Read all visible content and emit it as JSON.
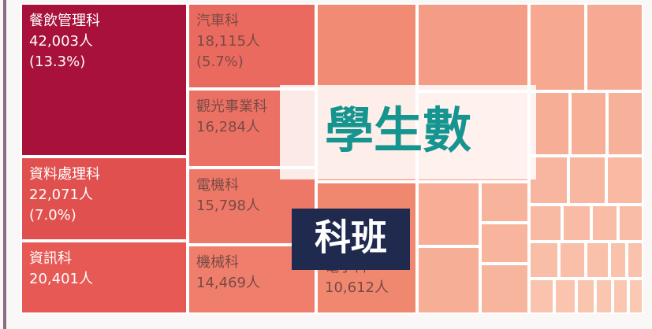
{
  "chart_data": {
    "type": "treemap",
    "title": "學生數",
    "subtitle": "科班",
    "categories": [
      "餐飲管理科",
      "資料處理科",
      "資訊科",
      "汽車科",
      "觀光事業科",
      "電機科",
      "機械科",
      "電子科"
    ],
    "values": [
      42003,
      22071,
      20401,
      18115,
      16284,
      15798,
      14469,
      10612
    ],
    "value_labels": [
      "42,003人",
      "22,071人",
      "20,401人",
      "18,115人",
      "16,284人",
      "15,798人",
      "14,469人",
      "10,612人"
    ],
    "percent_labels": [
      "(13.3%)",
      "(7.0%)",
      null,
      "(5.7%)",
      null,
      null,
      null,
      null
    ],
    "colors": [
      "#a8123a",
      "#e0504e",
      "#e65954",
      "#ea6a60",
      "#ec7165",
      "#ee7868",
      "#ef7e6c",
      "#f0876f"
    ]
  }
}
